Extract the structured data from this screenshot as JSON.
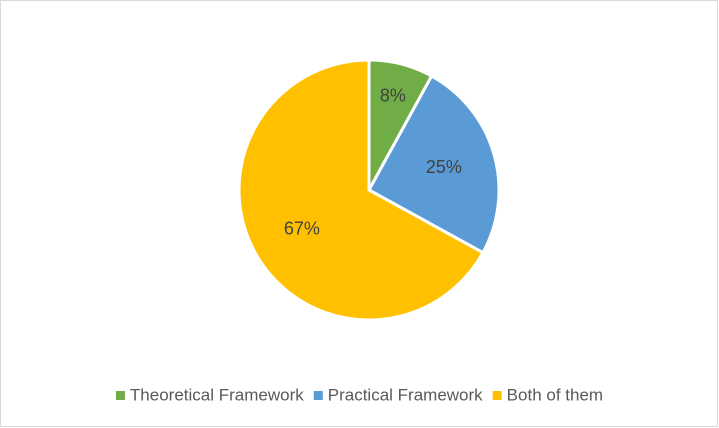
{
  "chart_data": {
    "type": "pie",
    "categories": [
      "Theoretical Framework",
      "Practical Framework",
      "Both of them"
    ],
    "values": [
      8,
      25,
      67
    ],
    "value_labels": [
      "8%",
      "25%",
      "67%"
    ],
    "colors": [
      "#70ad47",
      "#5b9bd5",
      "#ffc000"
    ],
    "legend": "bottom"
  }
}
